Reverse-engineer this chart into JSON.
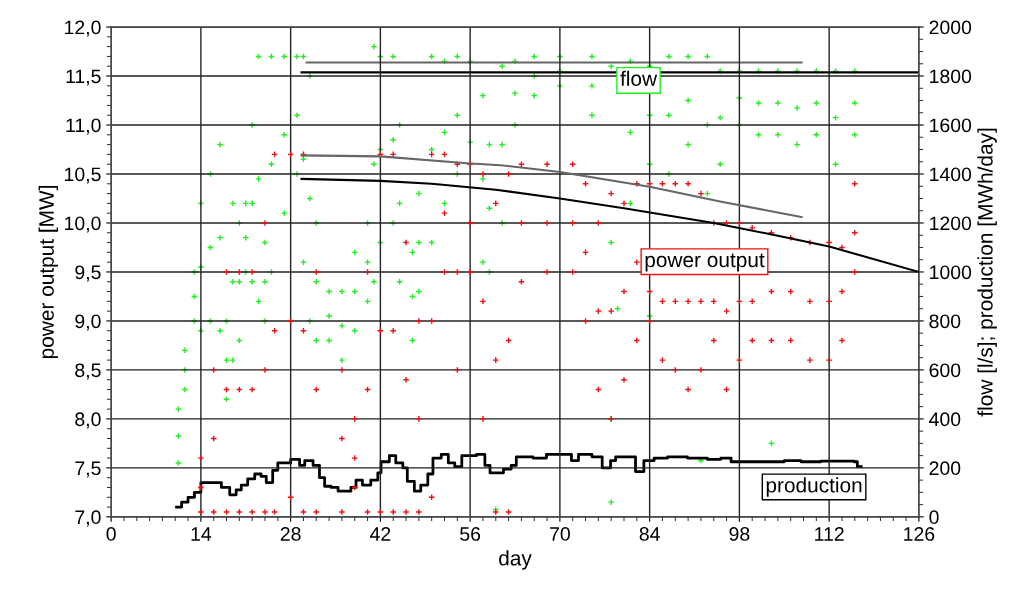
{
  "chart_data": {
    "type": "scatter",
    "xlabel": "day",
    "ylabel": "power output [MW]",
    "y2label": "flow [l/s]; production [MWh/day]",
    "xlim": [
      0,
      126
    ],
    "xticks": [
      0,
      14,
      28,
      42,
      56,
      70,
      84,
      98,
      112,
      126
    ],
    "ylim": [
      7,
      12
    ],
    "yticks": [
      {
        "value": 7,
        "label": "7,0"
      },
      {
        "value": 7.5,
        "label": "7,5"
      },
      {
        "value": 8,
        "label": "8,0"
      },
      {
        "value": 8.5,
        "label": "8,5"
      },
      {
        "value": 9,
        "label": "9,0"
      },
      {
        "value": 9.5,
        "label": "9,5"
      },
      {
        "value": 10,
        "label": "10,0"
      },
      {
        "value": 10.5,
        "label": "10,5"
      },
      {
        "value": 11,
        "label": "11,0"
      },
      {
        "value": 11.5,
        "label": "11,5"
      },
      {
        "value": 12,
        "label": "12,0"
      }
    ],
    "y2lim": [
      0,
      2000
    ],
    "y2ticks": [
      0,
      200,
      400,
      600,
      800,
      1000,
      1200,
      1400,
      1600,
      1800,
      2000
    ],
    "grid": true,
    "series": [
      {
        "name": "flow",
        "axis": "y2",
        "color": "#22ee22",
        "marker": "cross",
        "x": [
          10.5,
          10.5,
          10.5,
          11.5,
          11.5,
          11.5,
          13,
          13,
          13,
          14,
          14,
          14,
          15.5,
          15.5,
          15.5,
          17,
          17,
          17,
          18,
          18,
          18,
          19,
          19,
          19,
          20,
          20,
          20,
          21,
          21,
          21,
          22,
          22,
          22,
          23,
          23,
          23,
          24,
          24,
          24,
          25,
          25,
          25,
          27,
          27,
          27,
          29,
          29,
          29,
          30,
          30,
          30,
          31,
          31,
          31,
          32,
          32,
          32,
          34,
          34,
          34,
          36,
          36,
          36,
          38,
          38,
          38,
          40,
          40,
          40,
          41,
          41,
          41,
          42,
          42,
          42,
          44,
          44,
          44,
          45,
          45,
          45,
          47,
          47,
          47,
          48,
          48,
          48,
          50,
          50,
          50,
          52,
          52,
          52,
          54,
          54,
          54,
          56,
          56,
          56,
          58,
          58,
          58,
          59,
          59,
          59,
          61,
          61,
          61,
          63,
          63,
          63,
          66,
          66,
          66,
          70,
          70,
          70,
          75,
          75,
          75,
          78,
          78,
          78,
          81,
          81,
          81,
          84,
          84,
          84,
          87,
          87,
          87,
          90,
          90,
          90,
          93,
          93,
          93,
          95,
          95,
          95,
          98,
          98,
          98,
          101,
          101,
          101,
          104,
          104,
          104,
          107,
          107,
          107,
          110,
          110,
          110,
          113,
          113,
          113,
          116,
          116,
          116,
          78,
          79,
          84,
          92,
          103,
          60
        ],
        "values": [
          220,
          330,
          440,
          520,
          600,
          680,
          800,
          900,
          1000,
          760,
          1020,
          1280,
          800,
          1100,
          1400,
          760,
          1140,
          1520,
          480,
          640,
          800,
          640,
          960,
          1280,
          720,
          960,
          1200,
          1000,
          1140,
          1280,
          960,
          1280,
          1600,
          880,
          1380,
          1880,
          800,
          960,
          1120,
          1000,
          1440,
          1880,
          1240,
          1560,
          1880,
          1400,
          1640,
          1880,
          1040,
          1460,
          1880,
          800,
          1300,
          1800,
          720,
          960,
          1200,
          720,
          820,
          920,
          640,
          780,
          920,
          760,
          920,
          1080,
          880,
          1040,
          1200,
          960,
          1440,
          1920,
          1120,
          1500,
          1880,
          1200,
          1540,
          1880,
          960,
          1280,
          1600,
          720,
          900,
          1080,
          920,
          1120,
          1320,
          1120,
          1500,
          1880,
          1280,
          1570,
          1860,
          1400,
          1640,
          1880,
          1200,
          1530,
          1860,
          1040,
          1380,
          1720,
          1000,
          1260,
          1520,
          1200,
          1520,
          1840,
          1600,
          1730,
          1860,
          1720,
          1800,
          1880,
          1760,
          1820,
          1880,
          1640,
          1760,
          1880,
          400,
          1120,
          1840,
          1280,
          1570,
          1860,
          1440,
          1640,
          1840,
          1400,
          1640,
          1880,
          1520,
          1700,
          1880,
          1320,
          1600,
          1880,
          1440,
          1630,
          1820,
          1600,
          1710,
          1820,
          1560,
          1690,
          1820,
          1560,
          1690,
          1820,
          1520,
          1670,
          1820,
          1560,
          1690,
          1820,
          1440,
          1630,
          1820,
          1560,
          1690,
          1820,
          60,
          850,
          820,
          230,
          300,
          30
        ]
      },
      {
        "name": "power output",
        "color": "#ee1111",
        "marker": "cross",
        "x": [
          14,
          14,
          14,
          16,
          16,
          16,
          18,
          18,
          18,
          20,
          20,
          20,
          22,
          22,
          22,
          24,
          24,
          24,
          25.5,
          25.5,
          25.5,
          28,
          28,
          28,
          30,
          30,
          30,
          32,
          32,
          32,
          36,
          36,
          36,
          38,
          38,
          38,
          40,
          40,
          40,
          42,
          42,
          42,
          44,
          44,
          44,
          46,
          46,
          46,
          48,
          48,
          48,
          50,
          50,
          50,
          52,
          52,
          52,
          54,
          54,
          54,
          56,
          56,
          56,
          58,
          58,
          58,
          60,
          60,
          60,
          62,
          62,
          62,
          64,
          64,
          64,
          68,
          68,
          68,
          72,
          72,
          72,
          74,
          74,
          74,
          76,
          76,
          76,
          78,
          78,
          78,
          80,
          80,
          80,
          82,
          82,
          82,
          84,
          84,
          84,
          86,
          86,
          86,
          88,
          88,
          88,
          90,
          90,
          90,
          92,
          92,
          92,
          94,
          94,
          94,
          96,
          96,
          96,
          98,
          98,
          98,
          100,
          100,
          100,
          103,
          103,
          103,
          106,
          106,
          106,
          109,
          109,
          109,
          112,
          112,
          112,
          114,
          114,
          114,
          116,
          116,
          116
        ],
        "values": [
          7.05,
          7.3,
          7.6,
          7.05,
          7.8,
          8.5,
          7.05,
          8.3,
          9.5,
          7.05,
          8.3,
          9.5,
          7.05,
          8.3,
          9.5,
          7.05,
          8.5,
          10.0,
          7.05,
          8.9,
          10.7,
          7.2,
          9.0,
          10.7,
          7.05,
          8.9,
          10.7,
          7.05,
          8.3,
          9.5,
          7.05,
          7.8,
          8.5,
          7.3,
          7.6,
          8.0,
          7.05,
          8.3,
          9.5,
          7.05,
          8.9,
          10.7,
          7.05,
          8.9,
          10.7,
          7.05,
          8.4,
          9.8,
          7.05,
          8.0,
          9.0,
          7.2,
          9.0,
          10.7,
          9.5,
          10.1,
          10.7,
          8.5,
          9.5,
          10.6,
          9.5,
          10.0,
          10.6,
          8.0,
          9.2,
          10.5,
          7.05,
          8.6,
          10.2,
          7.05,
          8.8,
          10.5,
          9.4,
          10.0,
          10.6,
          9.5,
          10.0,
          10.6,
          9.5,
          10.0,
          10.6,
          9.0,
          9.7,
          10.4,
          8.3,
          9.1,
          10.0,
          8.0,
          9.1,
          10.3,
          8.4,
          9.3,
          10.2,
          8.8,
          9.6,
          10.4,
          9.0,
          9.3,
          10.4,
          8.6,
          9.2,
          10.4,
          8.5,
          9.2,
          10.4,
          8.3,
          9.2,
          10.4,
          8.5,
          9.2,
          10.3,
          8.8,
          9.2,
          10.0,
          8.3,
          9.1,
          10.0,
          8.6,
          9.2,
          10.0,
          8.8,
          9.2,
          9.95,
          8.8,
          9.3,
          9.9,
          8.8,
          9.3,
          9.85,
          8.6,
          9.2,
          9.8,
          8.6,
          9.2,
          9.8,
          8.8,
          9.3,
          9.75,
          9.5,
          9.9,
          10.4
        ]
      },
      {
        "name": "production",
        "type": "step",
        "axis": "y2",
        "color": "#000000",
        "x": [
          10.2,
          11,
          12,
          13,
          14,
          17.2,
          18.5,
          19.5,
          20.3,
          21.3,
          22.4,
          23.4,
          24.2,
          25.2,
          26,
          28,
          29.4,
          30.2,
          31.5,
          32.5,
          33.3,
          34.3,
          35.4,
          37.4,
          38.2,
          39.2,
          40.5,
          41.6,
          42.1,
          43.4,
          44.4,
          45.5,
          46.2,
          47.3,
          48.3,
          49.4,
          50.2,
          51.5,
          52.6,
          53.6,
          54.7,
          57,
          58.3,
          59.1,
          60.1,
          61.2,
          62.4,
          63.2,
          65.8,
          67.9,
          71.8,
          72.9,
          75,
          76.6,
          77.9,
          78.7,
          81.8,
          83.1,
          84.7,
          86.8,
          89.9,
          93,
          95.1,
          96.7,
          101.3,
          105,
          107.6,
          110.7,
          115.9,
          116.4,
          117
        ],
        "values": [
          40,
          60,
          80,
          100,
          140,
          120,
          90,
          110,
          130,
          155,
          175,
          165,
          140,
          190,
          220,
          235,
          210,
          230,
          210,
          160,
          125,
          120,
          105,
          120,
          150,
          130,
          150,
          180,
          225,
          250,
          220,
          200,
          145,
          105,
          130,
          175,
          240,
          255,
          220,
          205,
          250,
          255,
          210,
          180,
          180,
          195,
          210,
          245,
          240,
          255,
          230,
          255,
          245,
          200,
          230,
          245,
          185,
          230,
          240,
          245,
          240,
          235,
          240,
          225,
          225,
          230,
          225,
          228,
          225,
          205,
          205
        ]
      },
      {
        "type": "line",
        "color": "#000000",
        "x": [
          29.7,
          42,
          50,
          60,
          70,
          80,
          94,
          104,
          112,
          126
        ],
        "values": [
          10.45,
          10.43,
          10.4,
          10.34,
          10.25,
          10.15,
          10.0,
          9.87,
          9.76,
          9.5
        ]
      },
      {
        "type": "line",
        "color": "#666666",
        "x": [
          29.7,
          42,
          55.5,
          60.7,
          70,
          84,
          95,
          107.7
        ],
        "values": [
          10.69,
          10.68,
          10.61,
          10.59,
          10.52,
          10.37,
          10.22,
          10.06
        ]
      },
      {
        "type": "line",
        "axis": "y2",
        "color": "#000000",
        "x": [
          29.7,
          126
        ],
        "values": [
          1815,
          1815
        ]
      },
      {
        "type": "line",
        "axis": "y2",
        "color": "#666666",
        "x": [
          30.5,
          107.7
        ],
        "values": [
          1855,
          1855
        ]
      }
    ]
  }
}
